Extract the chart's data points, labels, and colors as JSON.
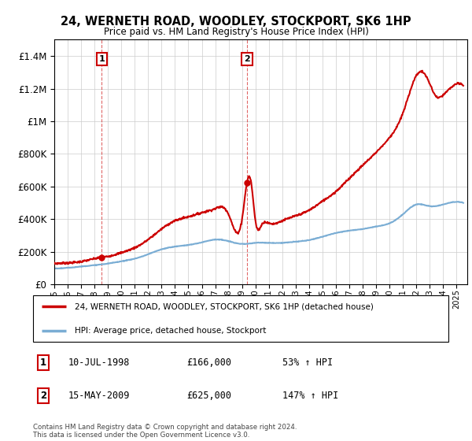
{
  "title": "24, WERNETH ROAD, WOODLEY, STOCKPORT, SK6 1HP",
  "subtitle": "Price paid vs. HM Land Registry's House Price Index (HPI)",
  "property_label": "24, WERNETH ROAD, WOODLEY, STOCKPORT, SK6 1HP (detached house)",
  "hpi_label": "HPI: Average price, detached house, Stockport",
  "footnote": "Contains HM Land Registry data © Crown copyright and database right 2024.\nThis data is licensed under the Open Government Licence v3.0.",
  "sale1_date": "10-JUL-1998",
  "sale1_price": 166000,
  "sale1_pct": "53% ↑ HPI",
  "sale2_date": "15-MAY-2009",
  "sale2_price": 625000,
  "sale2_pct": "147% ↑ HPI",
  "sale1_year": 1998.53,
  "sale2_year": 2009.37,
  "red_color": "#cc0000",
  "blue_color": "#7aadd4",
  "background_color": "#ffffff",
  "grid_color": "#cccccc"
}
